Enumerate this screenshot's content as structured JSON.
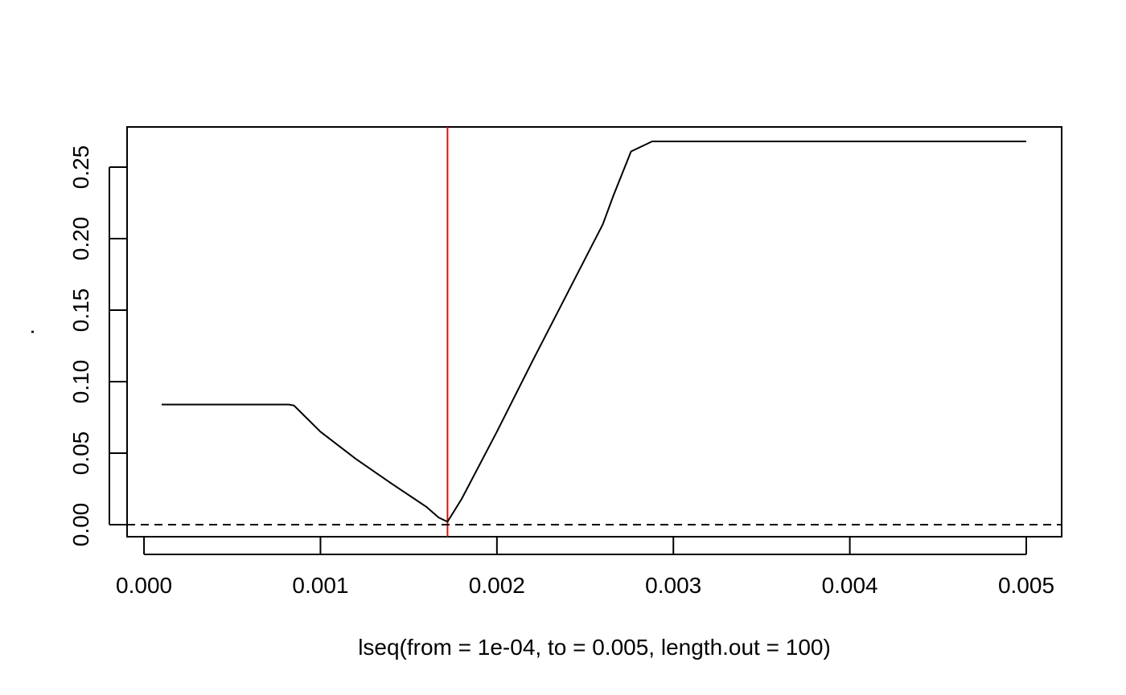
{
  "chart_data": {
    "type": "line",
    "title": "",
    "xlabel": "lseq(from = 1e-04, to = 0.005, length.out = 100)",
    "ylabel": ".",
    "xlim": [
      0.0001,
      0.005
    ],
    "ylim": [
      0,
      0.268
    ],
    "x_ticks": [
      0.0,
      0.001,
      0.002,
      0.003,
      0.004,
      0.005
    ],
    "x_tick_labels": [
      "0.000",
      "0.001",
      "0.002",
      "0.003",
      "0.004",
      "0.005"
    ],
    "y_ticks": [
      0.0,
      0.05,
      0.1,
      0.15,
      0.2,
      0.25
    ],
    "y_tick_labels": [
      "0.00",
      "0.05",
      "0.10",
      "0.15",
      "0.20",
      "0.25"
    ],
    "grid": false,
    "series": [
      {
        "color": "#000000",
        "x": [
          0.0001,
          0.00082,
          0.00085,
          0.001,
          0.0012,
          0.0014,
          0.0016,
          0.00167,
          0.00172,
          0.0018,
          0.002,
          0.0022,
          0.0024,
          0.0026,
          0.00266,
          0.00276,
          0.00288,
          0.003,
          0.0035,
          0.004,
          0.0045,
          0.005
        ],
        "y": [
          0.084,
          0.084,
          0.0833,
          0.065,
          0.046,
          0.029,
          0.0125,
          0.005,
          0.002,
          0.018,
          0.065,
          0.114,
          0.162,
          0.21,
          0.23,
          0.261,
          0.268,
          0.268,
          0.268,
          0.268,
          0.268,
          0.268
        ]
      }
    ],
    "reference_lines": [
      {
        "orientation": "vertical",
        "x": 0.00172,
        "color": "#ff0000",
        "style": "solid"
      },
      {
        "orientation": "horizontal",
        "y": 0,
        "color": "#000000",
        "style": "dashed"
      }
    ]
  }
}
